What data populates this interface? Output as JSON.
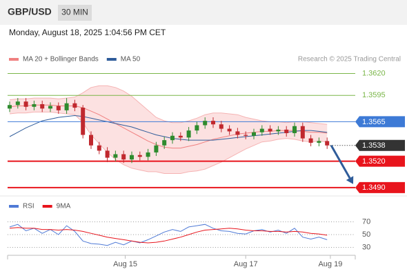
{
  "header": {
    "symbol": "GBP/USD",
    "timeframe": "30 MIN",
    "datetime": "Monday, August 18, 2025 1:04:56 PM CET"
  },
  "chart_data": [
    {
      "type": "candlestick",
      "legend": [
        {
          "name": "MA 20 + Bollinger Bands",
          "color": "#f08080"
        },
        {
          "name": "MA 50",
          "color": "#2f5c9a"
        }
      ],
      "credit": "Research © 2025 Trading Central",
      "up_color": "#2e8b2e",
      "down_color": "#c0282e",
      "ylim": [
        1.3482,
        1.3629
      ],
      "ohlc": [
        [
          1.358,
          1.3588,
          1.3576,
          1.3584
        ],
        [
          1.3584,
          1.3592,
          1.358,
          1.3588
        ],
        [
          1.3588,
          1.3592,
          1.3578,
          1.3582
        ],
        [
          1.3582,
          1.3589,
          1.3578,
          1.3585
        ],
        [
          1.3585,
          1.3589,
          1.3576,
          1.358
        ],
        [
          1.358,
          1.3587,
          1.3576,
          1.3583
        ],
        [
          1.3583,
          1.3587,
          1.3574,
          1.3578
        ],
        [
          1.3578,
          1.3592,
          1.3574,
          1.3586
        ],
        [
          1.3586,
          1.359,
          1.3577,
          1.3581
        ],
        [
          1.3581,
          1.3584,
          1.3546,
          1.355
        ],
        [
          1.355,
          1.3554,
          1.3534,
          1.3538
        ],
        [
          1.3538,
          1.3542,
          1.3528,
          1.3532
        ],
        [
          1.3532,
          1.3536,
          1.3519,
          1.3524
        ],
        [
          1.3524,
          1.3532,
          1.352,
          1.3528
        ],
        [
          1.3528,
          1.3532,
          1.3518,
          1.3522
        ],
        [
          1.3522,
          1.3531,
          1.3518,
          1.3527
        ],
        [
          1.3527,
          1.3531,
          1.3521,
          1.3525
        ],
        [
          1.3525,
          1.3534,
          1.3521,
          1.353
        ],
        [
          1.353,
          1.3542,
          1.3526,
          1.3538
        ],
        [
          1.3538,
          1.3548,
          1.3534,
          1.3544
        ],
        [
          1.3544,
          1.3553,
          1.354,
          1.3549
        ],
        [
          1.3549,
          1.3553,
          1.3543,
          1.3547
        ],
        [
          1.3547,
          1.3559,
          1.3543,
          1.3555
        ],
        [
          1.3555,
          1.3565,
          1.3551,
          1.3561
        ],
        [
          1.3561,
          1.357,
          1.3557,
          1.3566
        ],
        [
          1.3566,
          1.357,
          1.3558,
          1.3562
        ],
        [
          1.3562,
          1.3566,
          1.3553,
          1.3557
        ],
        [
          1.3557,
          1.3561,
          1.355,
          1.3554
        ],
        [
          1.3554,
          1.3558,
          1.3546,
          1.355
        ],
        [
          1.355,
          1.3554,
          1.3545,
          1.3549
        ],
        [
          1.3549,
          1.3557,
          1.3545,
          1.3553
        ],
        [
          1.3553,
          1.3561,
          1.3549,
          1.3557
        ],
        [
          1.3557,
          1.3561,
          1.355,
          1.3554
        ],
        [
          1.3554,
          1.356,
          1.355,
          1.3556
        ],
        [
          1.3556,
          1.356,
          1.3548,
          1.3552
        ],
        [
          1.3552,
          1.3564,
          1.3548,
          1.356
        ],
        [
          1.356,
          1.3564,
          1.3542,
          1.3546
        ],
        [
          1.3546,
          1.355,
          1.3537,
          1.3541
        ],
        [
          1.3541,
          1.3547,
          1.3537,
          1.3543
        ],
        [
          1.3543,
          1.3547,
          1.3534,
          1.3538
        ]
      ],
      "ma20": [
        1.3582,
        1.3583,
        1.3583,
        1.3584,
        1.3584,
        1.3584,
        1.3583,
        1.3583,
        1.3583,
        1.3581,
        1.3577,
        1.3573,
        1.3568,
        1.3563,
        1.3558,
        1.3553,
        1.3548,
        1.3543,
        1.3539,
        1.3536,
        1.3535,
        1.3535,
        1.3537,
        1.3539,
        1.3542,
        1.3545,
        1.3547,
        1.3549,
        1.3551,
        1.3552,
        1.3553,
        1.3554,
        1.3554,
        1.3555,
        1.3555,
        1.3555,
        1.3554,
        1.3553,
        1.3553,
        1.3552
      ],
      "bb_upper": [
        1.359,
        1.3591,
        1.3591,
        1.3592,
        1.3592,
        1.3592,
        1.3591,
        1.3592,
        1.3593,
        1.3598,
        1.3604,
        1.3606,
        1.3606,
        1.3604,
        1.36,
        1.3594,
        1.3586,
        1.3578,
        1.357,
        1.3566,
        1.3564,
        1.3564,
        1.3566,
        1.3569,
        1.3573,
        1.3575,
        1.3575,
        1.3574,
        1.3573,
        1.357,
        1.3568,
        1.3566,
        1.3565,
        1.3565,
        1.3564,
        1.3565,
        1.3565,
        1.3564,
        1.3563,
        1.3562
      ],
      "bb_lower": [
        1.3574,
        1.3575,
        1.3575,
        1.3576,
        1.3576,
        1.3576,
        1.3575,
        1.3574,
        1.3573,
        1.3564,
        1.355,
        1.354,
        1.353,
        1.3522,
        1.3516,
        1.3512,
        1.351,
        1.3508,
        1.3508,
        1.3506,
        1.3506,
        1.3506,
        1.3508,
        1.3509,
        1.3511,
        1.3515,
        1.3519,
        1.3524,
        1.3529,
        1.3534,
        1.3538,
        1.3542,
        1.3543,
        1.3545,
        1.3546,
        1.3545,
        1.3543,
        1.3542,
        1.3543,
        1.3542
      ],
      "ma50": [
        1.3548,
        1.3553,
        1.3558,
        1.3562,
        1.3566,
        1.3568,
        1.357,
        1.3571,
        1.3572,
        1.3571,
        1.3569,
        1.3567,
        1.3565,
        1.3563,
        1.3561,
        1.3559,
        1.3556,
        1.3553,
        1.355,
        1.3548,
        1.3546,
        1.3545,
        1.3544,
        1.3544,
        1.3544,
        1.3544,
        1.3545,
        1.3546,
        1.3547,
        1.3548,
        1.3549,
        1.355,
        1.3551,
        1.3552,
        1.3553,
        1.3554,
        1.3555,
        1.3555,
        1.3554,
        1.3553
      ],
      "levels": [
        {
          "value": 1.362,
          "label": "1.3620",
          "color": "#7ab648",
          "style": "text"
        },
        {
          "value": 1.3595,
          "label": "1.3595",
          "color": "#7ab648",
          "style": "text"
        },
        {
          "value": 1.3565,
          "label": "1.3565",
          "color": "#3d7ad6",
          "style": "box"
        },
        {
          "value": 1.3538,
          "label": "1.3538",
          "color": "#333333",
          "style": "current"
        },
        {
          "value": 1.352,
          "label": "1.3520",
          "color": "#e8141c",
          "style": "box"
        },
        {
          "value": 1.349,
          "label": "1.3490",
          "color": "#e8141c",
          "style": "box"
        }
      ],
      "arrow": {
        "from": [
          39.5,
          1.3538
        ],
        "to": [
          42.2,
          1.3494
        ],
        "color": "#2f5c9a"
      }
    },
    {
      "type": "line",
      "legend": [
        {
          "name": "RSI",
          "color": "#4f7ad6"
        },
        {
          "name": "9MA",
          "color": "#e8141c"
        }
      ],
      "ylim": [
        15,
        100
      ],
      "yticks": [
        70,
        50,
        30
      ],
      "series": [
        {
          "name": "RSI",
          "color": "#4f7ad6",
          "values": [
            62,
            66,
            56,
            60,
            52,
            58,
            50,
            64,
            55,
            40,
            36,
            35,
            33,
            38,
            34,
            40,
            37,
            42,
            48,
            54,
            58,
            55,
            62,
            64,
            66,
            60,
            56,
            55,
            52,
            51,
            56,
            58,
            54,
            57,
            52,
            60,
            46,
            43,
            46,
            42
          ]
        },
        {
          "name": "9MA",
          "color": "#e8141c",
          "values": [
            60,
            61,
            60,
            60,
            58,
            58,
            57,
            58,
            57,
            55,
            52,
            49,
            46,
            44,
            42,
            40,
            38,
            37,
            38,
            40,
            43,
            46,
            50,
            54,
            57,
            58,
            59,
            60,
            59,
            57,
            56,
            56,
            55,
            55,
            54,
            55,
            54,
            52,
            51,
            49
          ]
        }
      ],
      "xticks": [
        {
          "value": 14.2,
          "label": "Aug 15"
        },
        {
          "value": 29,
          "label": "Aug 17"
        },
        {
          "value": 39.4,
          "label": "Aug 19"
        }
      ]
    }
  ]
}
